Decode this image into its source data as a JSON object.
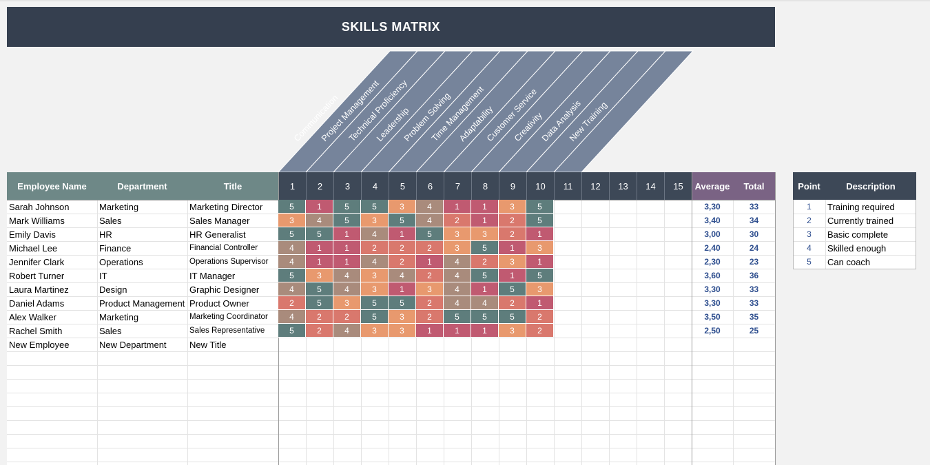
{
  "title": "SKILLS MATRIX",
  "skills": [
    "Communication",
    "Project Management",
    "Technical Proficiency",
    "Leadership",
    "Problem Solving",
    "Time Management",
    "Adaptability",
    "Customer Service",
    "Creativity",
    "Data Analysis",
    "New Training"
  ],
  "headers": {
    "employee": "Employee Name",
    "department": "Department",
    "title": "Title",
    "columns": [
      "1",
      "2",
      "3",
      "4",
      "5",
      "6",
      "7",
      "8",
      "9",
      "10",
      "11",
      "12",
      "13",
      "14",
      "15"
    ],
    "average": "Average",
    "total": "Total"
  },
  "employees": [
    {
      "name": "Sarah Johnson",
      "department": "Marketing",
      "title": "Marketing Director",
      "scores": [
        5,
        1,
        5,
        5,
        3,
        4,
        1,
        1,
        3,
        5
      ],
      "average": "3,30",
      "total": "33"
    },
    {
      "name": "Mark Williams",
      "department": "Sales",
      "title": "Sales Manager",
      "scores": [
        3,
        4,
        5,
        3,
        5,
        4,
        2,
        1,
        2,
        5
      ],
      "average": "3,40",
      "total": "34"
    },
    {
      "name": "Emily Davis",
      "department": "HR",
      "title": "HR Generalist",
      "scores": [
        5,
        5,
        1,
        4,
        1,
        5,
        3,
        3,
        2,
        1
      ],
      "average": "3,00",
      "total": "30"
    },
    {
      "name": "Michael Lee",
      "department": "Finance",
      "title": "Financial Controller",
      "scores": [
        4,
        1,
        1,
        2,
        2,
        2,
        3,
        5,
        1,
        3
      ],
      "average": "2,40",
      "total": "24"
    },
    {
      "name": "Jennifer Clark",
      "department": "Operations",
      "title": "Operations Supervisor",
      "scores": [
        4,
        1,
        1,
        4,
        2,
        1,
        4,
        2,
        3,
        1
      ],
      "average": "2,30",
      "total": "23"
    },
    {
      "name": "Robert Turner",
      "department": "IT",
      "title": "IT Manager",
      "scores": [
        5,
        3,
        4,
        3,
        4,
        2,
        4,
        5,
        1,
        5
      ],
      "average": "3,60",
      "total": "36"
    },
    {
      "name": "Laura Martinez",
      "department": "Design",
      "title": "Graphic Designer",
      "scores": [
        4,
        5,
        4,
        3,
        1,
        3,
        4,
        1,
        5,
        3
      ],
      "average": "3,30",
      "total": "33"
    },
    {
      "name": "Daniel Adams",
      "department": "Product Management",
      "title": "Product Owner",
      "scores": [
        2,
        5,
        3,
        5,
        5,
        2,
        4,
        4,
        2,
        1
      ],
      "average": "3,30",
      "total": "33"
    },
    {
      "name": "Alex Walker",
      "department": "Marketing",
      "title": "Marketing Coordinator",
      "scores": [
        4,
        2,
        2,
        5,
        3,
        2,
        5,
        5,
        5,
        2
      ],
      "average": "3,50",
      "total": "35"
    },
    {
      "name": "Rachel Smith",
      "department": "Sales",
      "title": "Sales Representative",
      "scores": [
        5,
        2,
        4,
        3,
        3,
        1,
        1,
        1,
        3,
        2
      ],
      "average": "2,50",
      "total": "25"
    },
    {
      "name": "New Employee",
      "department": "New Department",
      "title": "New Title",
      "scores": [],
      "average": "",
      "total": ""
    }
  ],
  "legend": {
    "point_header": "Point",
    "description_header": "Description",
    "items": [
      {
        "point": "1",
        "description": "Training required"
      },
      {
        "point": "2",
        "description": "Currently trained"
      },
      {
        "point": "3",
        "description": "Basic complete"
      },
      {
        "point": "4",
        "description": "Skilled enough"
      },
      {
        "point": "5",
        "description": "Can coach"
      }
    ]
  },
  "colors": {
    "score_1": "#c05a71",
    "score_2": "#d9786d",
    "score_3": "#e8996e",
    "score_4": "#a98b7c",
    "score_5": "#5e7d7c",
    "banner": "#353f4f",
    "skill_band": "#76849b",
    "header_teal": "#6e8887",
    "header_dark": "#3d4857",
    "header_purple": "#7a6384",
    "stat_text": "#2f4f8f"
  }
}
